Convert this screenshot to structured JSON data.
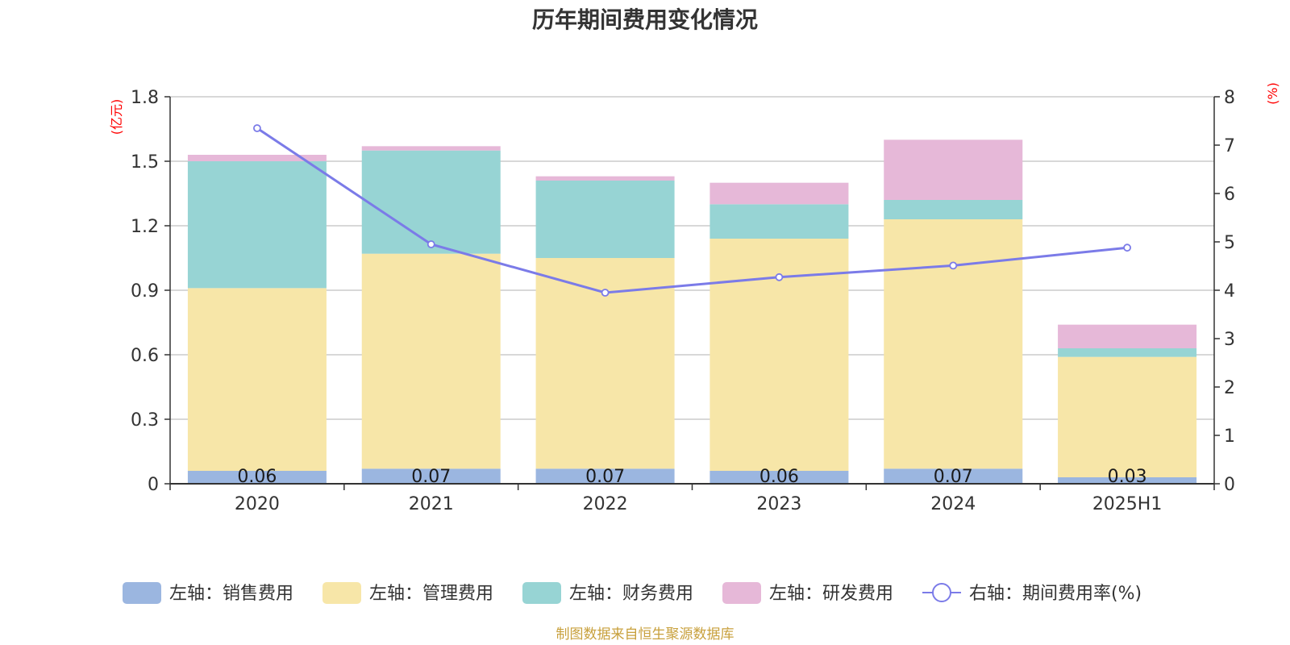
{
  "chart_data": {
    "type": "bar",
    "title": "历年期间费用变化情况",
    "categories": [
      "2020",
      "2021",
      "2022",
      "2023",
      "2024",
      "2025H1"
    ],
    "y_left": {
      "unit_label": "(亿元)",
      "range": [
        0,
        1.8
      ],
      "ticks": [
        "0",
        "0.3",
        "0.6",
        "0.9",
        "1.2",
        "1.5",
        "1.8"
      ]
    },
    "y_right": {
      "unit_label": "(%)",
      "range": [
        0,
        8
      ],
      "ticks": [
        "0",
        "1",
        "2",
        "3",
        "4",
        "5",
        "6",
        "7",
        "8"
      ]
    },
    "stacked": true,
    "series": [
      {
        "name": "左轴：销售费用",
        "type": "bar",
        "axis": "left",
        "color": "#9bb6e0",
        "values": [
          0.06,
          0.07,
          0.07,
          0.06,
          0.07,
          0.03
        ],
        "data_labels": [
          "0.06",
          "0.07",
          "0.07",
          "0.06",
          "0.07",
          "0.03"
        ]
      },
      {
        "name": "左轴：管理费用",
        "type": "bar",
        "axis": "left",
        "color": "#f7e6a8",
        "values": [
          0.85,
          1.0,
          0.98,
          1.08,
          1.16,
          0.56
        ]
      },
      {
        "name": "左轴：财务费用",
        "type": "bar",
        "axis": "left",
        "color": "#97d4d4",
        "values": [
          0.59,
          0.48,
          0.36,
          0.16,
          0.09,
          0.04
        ]
      },
      {
        "name": "左轴：研发费用",
        "type": "bar",
        "axis": "left",
        "color": "#e6b8d8",
        "values": [
          0.03,
          0.02,
          0.02,
          0.1,
          0.28,
          0.11
        ]
      },
      {
        "name": "右轴：期间费用率(%)",
        "type": "line",
        "axis": "right",
        "color": "#7b7be8",
        "values": [
          7.35,
          4.95,
          3.95,
          4.27,
          4.51,
          4.88
        ]
      }
    ],
    "grid": true,
    "legend_position": "bottom",
    "source": "制图数据来自恒生聚源数据库"
  }
}
